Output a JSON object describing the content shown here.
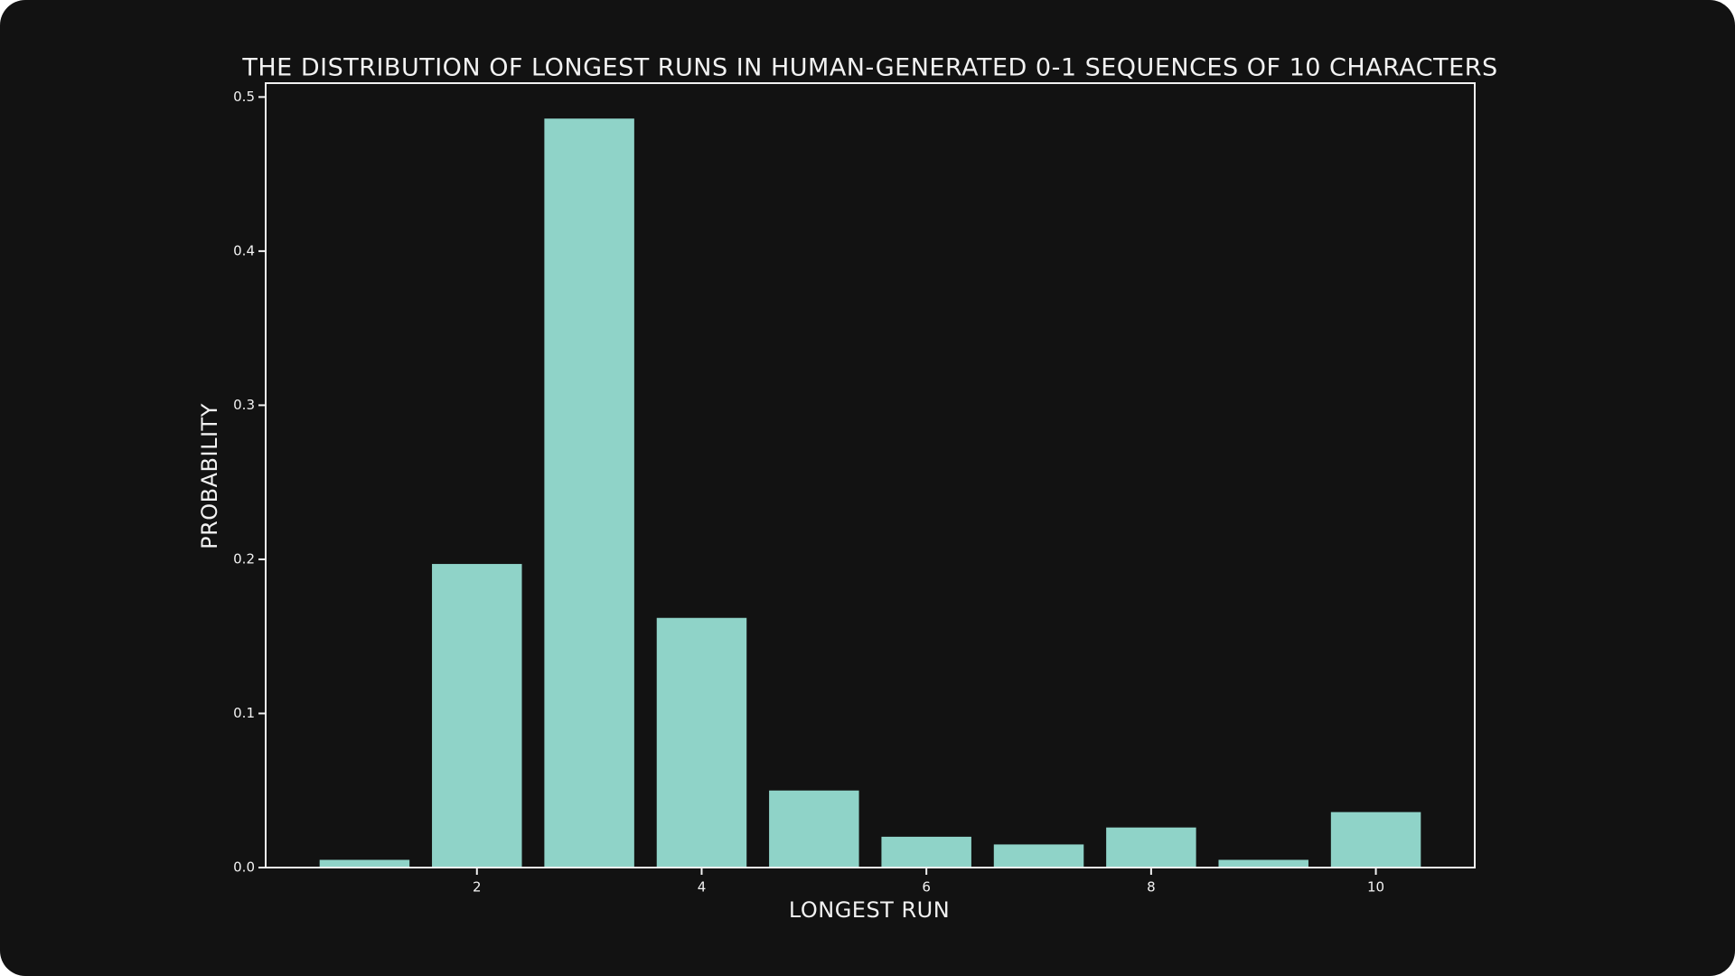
{
  "chart_data": {
    "type": "bar",
    "title": "THE DISTRIBUTION OF LONGEST RUNS IN HUMAN-GENERATED 0-1 SEQUENCES OF 10 CHARACTERS",
    "x_label": "LONGEST RUN",
    "y_label": "PROBABILITY",
    "x": [
      1,
      2,
      3,
      4,
      5,
      6,
      7,
      8,
      9,
      10
    ],
    "values": [
      0.005,
      0.197,
      0.486,
      0.162,
      0.05,
      0.02,
      0.015,
      0.026,
      0.005,
      0.036
    ],
    "bar_width": 0.8,
    "color": "#8fd3c8",
    "xlim": [
      0.12,
      10.88
    ],
    "xticks": [
      2,
      4,
      6,
      8,
      10
    ],
    "ylim": [
      0,
      0.509
    ],
    "yticks": [
      {
        "value": 0,
        "label": "0.0"
      },
      0.1,
      0.2,
      0.3,
      0.4,
      0.5
    ],
    "grid": false
  }
}
